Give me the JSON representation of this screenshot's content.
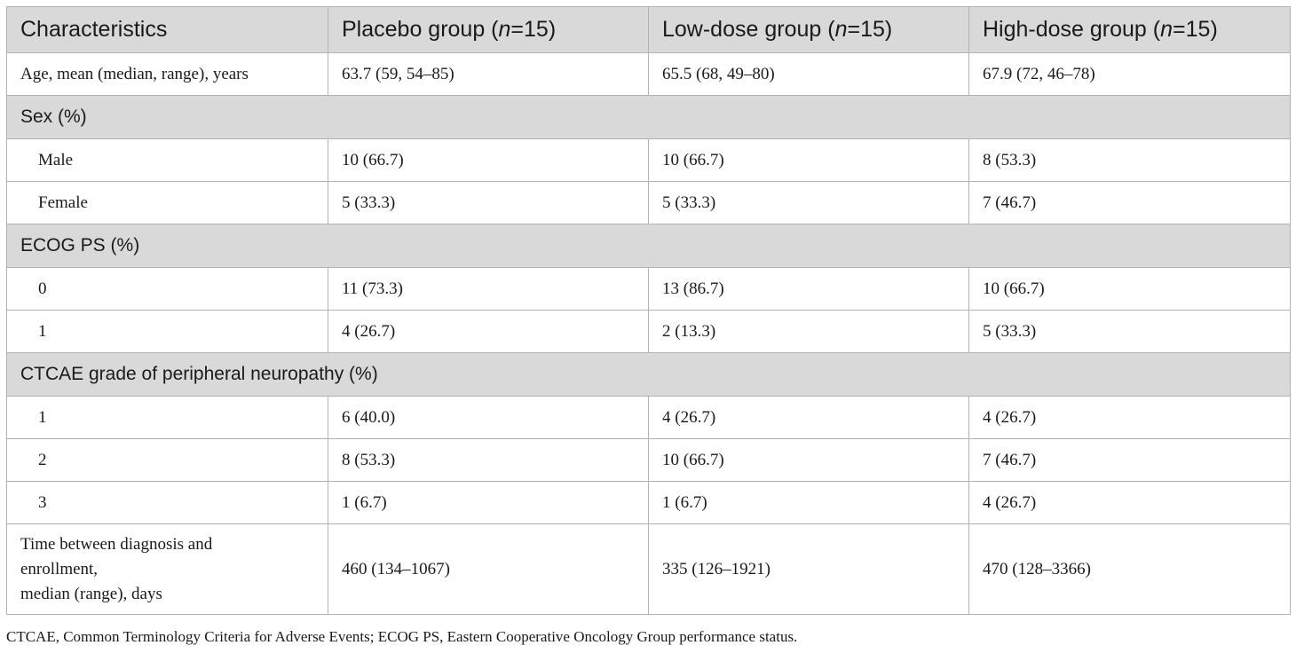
{
  "header": {
    "col0": "Characteristics",
    "groups": [
      {
        "pre": "Placebo group (",
        "n": "n",
        "post": "=15)"
      },
      {
        "pre": "Low-dose group (",
        "n": "n",
        "post": "=15)"
      },
      {
        "pre": "High-dose group (",
        "n": "n",
        "post": "=15)"
      }
    ]
  },
  "rows": {
    "age": {
      "label": "Age, mean (median, range), years",
      "values": [
        "63.7 (59, 54–85)",
        "65.5 (68, 49–80)",
        "67.9 (72, 46–78)"
      ]
    },
    "sex_header": "Sex (%)",
    "male": {
      "label": "Male",
      "values": [
        "10 (66.7)",
        "10 (66.7)",
        "8 (53.3)"
      ]
    },
    "female": {
      "label": "Female",
      "values": [
        "5 (33.3)",
        "5 (33.3)",
        "7 (46.7)"
      ]
    },
    "ecog_header": "ECOG PS (%)",
    "ecog0": {
      "label": "0",
      "values": [
        "11 (73.3)",
        "13 (86.7)",
        "10 (66.7)"
      ]
    },
    "ecog1": {
      "label": "1",
      "values": [
        "4 (26.7)",
        "2 (13.3)",
        "5 (33.3)"
      ]
    },
    "ctcae_header": "CTCAE grade of peripheral neuropathy (%)",
    "grade1": {
      "label": "1",
      "values": [
        "6 (40.0)",
        "4 (26.7)",
        "4 (26.7)"
      ]
    },
    "grade2": {
      "label": "2",
      "values": [
        "8 (53.3)",
        "10 (66.7)",
        "7 (46.7)"
      ]
    },
    "grade3": {
      "label": "3",
      "values": [
        "1 (6.7)",
        "1 (6.7)",
        "4 (26.7)"
      ]
    },
    "time": {
      "label": "Time between diagnosis and\nenrollment,\nmedian (range), days",
      "values": [
        "460 (134–1067)",
        "335 (126–1921)",
        "470 (128–3366)"
      ]
    }
  },
  "footnote": "CTCAE, Common Terminology Criteria for Adverse Events; ECOG PS, Eastern Cooperative Oncology Group performance status."
}
